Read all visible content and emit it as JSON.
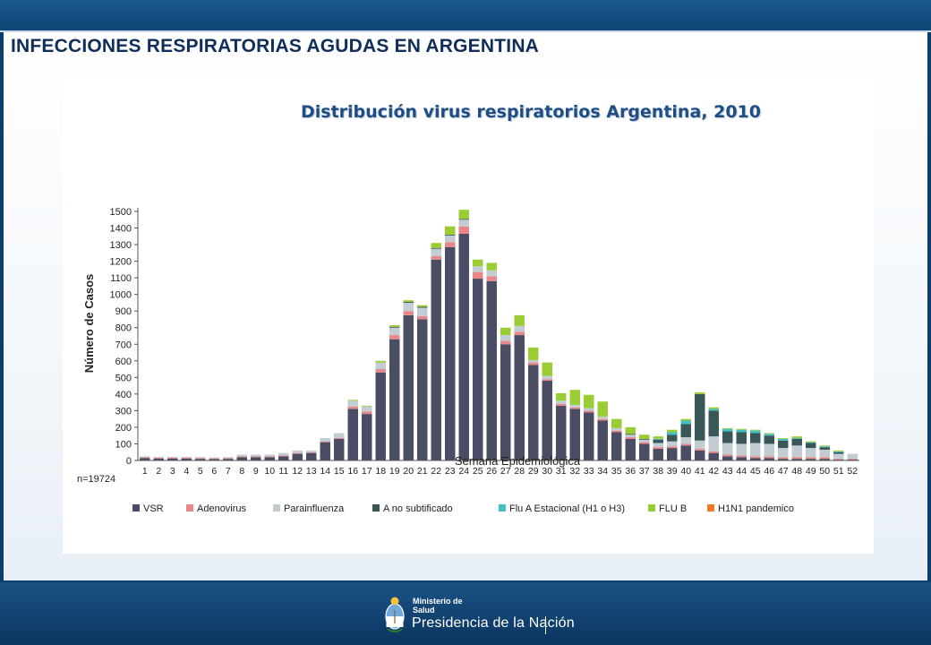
{
  "slide": {
    "title": "INFECCIONES RESPIRATORIAS AGUDAS EN ARGENTINA"
  },
  "footer": {
    "ministry_line1": "Ministerio de",
    "ministry_line2": "Salud",
    "presidency": "Presidencia de la Nación"
  },
  "colors": {
    "slide_background": "#0c3d6b",
    "title_text": "#0f2f5a",
    "chart_title_text": "#1f4e86"
  },
  "chart_data": {
    "type": "bar",
    "stacked": true,
    "title": "Distribución virus respiratorios  Argentina, 2010",
    "xlabel": "Semana Epidemiológica",
    "ylabel": "Número de Casos",
    "ylim": [
      0,
      1500
    ],
    "yticks": [
      0,
      100,
      200,
      300,
      400,
      500,
      600,
      700,
      800,
      900,
      1000,
      1100,
      1200,
      1300,
      1400,
      1500
    ],
    "grid": false,
    "legend_position": "bottom",
    "annotation": "n=19724",
    "categories": [
      "1",
      "2",
      "3",
      "4",
      "5",
      "6",
      "7",
      "8",
      "9",
      "10",
      "11",
      "12",
      "13",
      "14",
      "15",
      "16",
      "17",
      "18",
      "19",
      "20",
      "21",
      "22",
      "23",
      "24",
      "25",
      "26",
      "27",
      "28",
      "29",
      "30",
      "31",
      "32",
      "33",
      "34",
      "35",
      "36",
      "37",
      "38",
      "39",
      "40",
      "41",
      "42",
      "43",
      "44",
      "45",
      "46",
      "47",
      "48",
      "49",
      "50",
      "51",
      "52"
    ],
    "series": [
      {
        "name": "VSR",
        "color": "#4a4d63",
        "values": [
          15,
          12,
          12,
          12,
          10,
          8,
          10,
          20,
          20,
          20,
          25,
          40,
          45,
          110,
          130,
          310,
          280,
          530,
          730,
          875,
          850,
          1210,
          1285,
          1365,
          1095,
          1080,
          700,
          755,
          575,
          480,
          330,
          310,
          290,
          240,
          170,
          130,
          100,
          70,
          75,
          90,
          60,
          45,
          25,
          20,
          15,
          15,
          10,
          10,
          10,
          10,
          5,
          5
        ]
      },
      {
        "name": "Adenovirus",
        "color": "#e8868a",
        "values": [
          5,
          5,
          5,
          5,
          5,
          5,
          5,
          5,
          5,
          5,
          5,
          5,
          5,
          5,
          5,
          15,
          15,
          20,
          25,
          25,
          20,
          20,
          30,
          45,
          40,
          30,
          20,
          20,
          15,
          10,
          10,
          10,
          10,
          10,
          10,
          10,
          10,
          10,
          10,
          10,
          10,
          10,
          10,
          10,
          10,
          10,
          10,
          10,
          10,
          10,
          5,
          5
        ]
      },
      {
        "name": "Parainfluenza",
        "color": "#c2ccd3",
        "values": [
          5,
          5,
          5,
          5,
          5,
          5,
          5,
          10,
          10,
          10,
          15,
          15,
          10,
          20,
          30,
          35,
          30,
          40,
          45,
          50,
          50,
          45,
          40,
          40,
          35,
          35,
          35,
          35,
          15,
          20,
          20,
          15,
          15,
          15,
          15,
          15,
          15,
          25,
          30,
          40,
          50,
          90,
          70,
          70,
          80,
          75,
          55,
          70,
          55,
          45,
          30,
          30
        ]
      },
      {
        "name": "A no subtificado",
        "color": "#3a5757",
        "values": [
          0,
          0,
          0,
          0,
          0,
          0,
          0,
          0,
          0,
          0,
          0,
          0,
          0,
          0,
          0,
          0,
          0,
          0,
          5,
          5,
          5,
          5,
          5,
          5,
          0,
          0,
          0,
          0,
          0,
          0,
          0,
          0,
          0,
          0,
          0,
          5,
          5,
          20,
          40,
          80,
          280,
          155,
          70,
          70,
          60,
          50,
          45,
          40,
          30,
          15,
          10,
          0
        ]
      },
      {
        "name": "Flu A Estacional (H1 o H3)",
        "color": "#3fc1c9",
        "values": [
          0,
          0,
          0,
          0,
          0,
          0,
          0,
          0,
          0,
          0,
          0,
          0,
          0,
          0,
          0,
          0,
          0,
          0,
          0,
          0,
          0,
          0,
          0,
          0,
          0,
          0,
          0,
          0,
          0,
          0,
          0,
          0,
          0,
          0,
          0,
          0,
          0,
          5,
          15,
          20,
          0,
          10,
          15,
          15,
          15,
          10,
          10,
          5,
          5,
          5,
          5,
          0
        ]
      },
      {
        "name": "FLU B",
        "color": "#9acd32",
        "values": [
          0,
          0,
          0,
          0,
          0,
          0,
          0,
          0,
          0,
          0,
          0,
          0,
          0,
          0,
          0,
          5,
          5,
          10,
          10,
          10,
          10,
          30,
          50,
          55,
          40,
          45,
          45,
          65,
          75,
          80,
          45,
          90,
          80,
          90,
          55,
          40,
          25,
          15,
          15,
          10,
          10,
          10,
          5,
          5,
          5,
          5,
          5,
          10,
          5,
          5,
          5,
          0
        ]
      },
      {
        "name": "H1N1 pandemico",
        "color": "#f07b24",
        "values": [
          0,
          0,
          0,
          0,
          0,
          0,
          0,
          0,
          0,
          0,
          0,
          0,
          0,
          0,
          0,
          0,
          0,
          0,
          0,
          0,
          0,
          0,
          0,
          0,
          0,
          0,
          0,
          0,
          0,
          0,
          0,
          0,
          0,
          0,
          0,
          0,
          0,
          0,
          0,
          0,
          0,
          0,
          0,
          0,
          0,
          0,
          0,
          0,
          0,
          0,
          0,
          0
        ]
      }
    ]
  }
}
